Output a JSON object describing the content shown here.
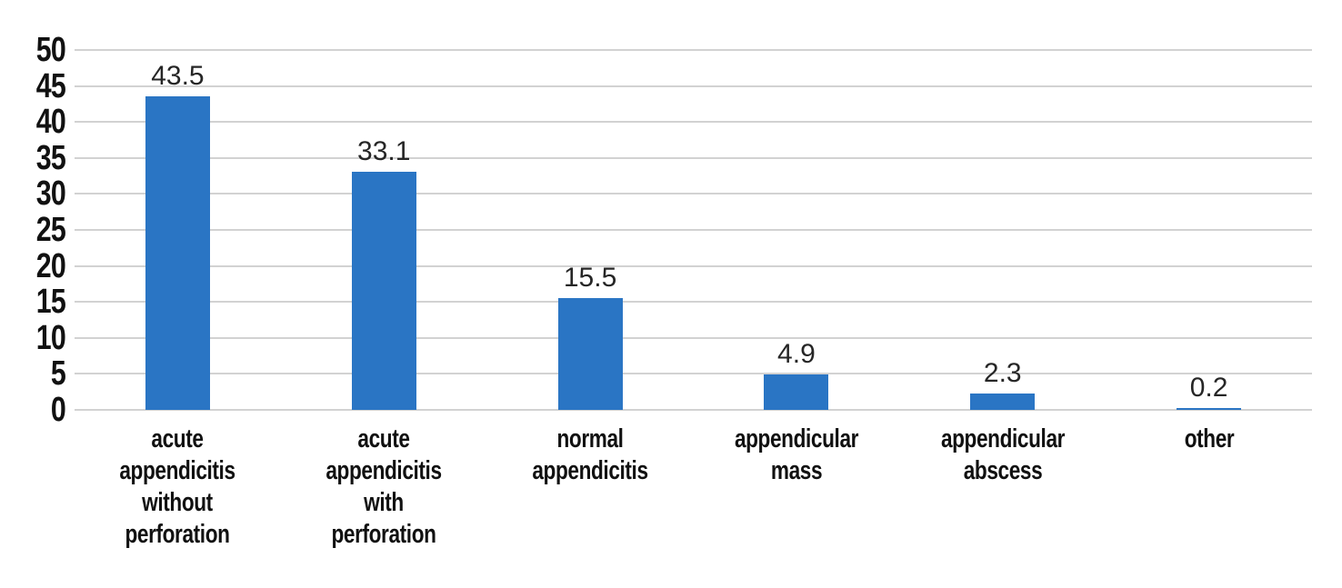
{
  "chart_data": {
    "type": "bar",
    "title": "",
    "xlabel": "",
    "ylabel": "",
    "categories": [
      "acute appendicitis without perforation",
      "acute appendicitis with perforation",
      "normal appendicitis",
      "appendicular mass",
      "appendicular abscess",
      "other"
    ],
    "values": [
      43.5,
      33.1,
      15.5,
      4.9,
      2.3,
      0.2
    ],
    "value_labels": [
      "43.5",
      "33.1",
      "15.5",
      "4.9",
      "2.3",
      "0.2"
    ],
    "ylim": [
      0,
      50
    ],
    "yticks": [
      0,
      5,
      10,
      15,
      20,
      25,
      30,
      35,
      40,
      45,
      50
    ],
    "grid": "horizontal",
    "legend": "none",
    "colors": {
      "bar": "#2a75c4",
      "gridline": "#d2d2d2",
      "tick_label": "#111111",
      "value_label": "#262626",
      "background": "#ffffff"
    }
  }
}
